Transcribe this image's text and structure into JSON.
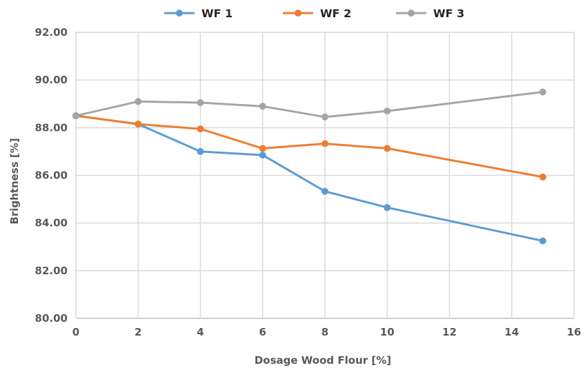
{
  "chart_data": {
    "type": "line",
    "title": "",
    "xlabel": "Dosage Wood Flour [%]",
    "ylabel": "Brightness [%]",
    "xlim": [
      0,
      16
    ],
    "ylim": [
      80,
      92
    ],
    "x_ticks": [
      0,
      2,
      4,
      6,
      8,
      10,
      12,
      14,
      16
    ],
    "y_ticks": [
      "80.00",
      "82.00",
      "84.00",
      "86.00",
      "88.00",
      "90.00",
      "92.00"
    ],
    "grid": "vertical and horizontal",
    "legend_position": "top",
    "series": [
      {
        "name": "WF 1",
        "color": "#5b9bd5",
        "x": [
          0,
          2,
          4,
          6,
          8,
          10,
          15
        ],
        "y": [
          88.5,
          88.15,
          87.0,
          86.85,
          85.33,
          84.65,
          83.25
        ]
      },
      {
        "name": "WF 2",
        "color": "#ed7d31",
        "x": [
          0,
          2,
          4,
          6,
          8,
          10,
          15
        ],
        "y": [
          88.5,
          88.15,
          87.95,
          87.13,
          87.33,
          87.13,
          85.93
        ]
      },
      {
        "name": "WF 3",
        "color": "#a5a5a5",
        "x": [
          0,
          2,
          4,
          6,
          8,
          10,
          15
        ],
        "y": [
          88.5,
          89.1,
          89.05,
          88.9,
          88.45,
          88.7,
          89.5
        ]
      }
    ]
  }
}
